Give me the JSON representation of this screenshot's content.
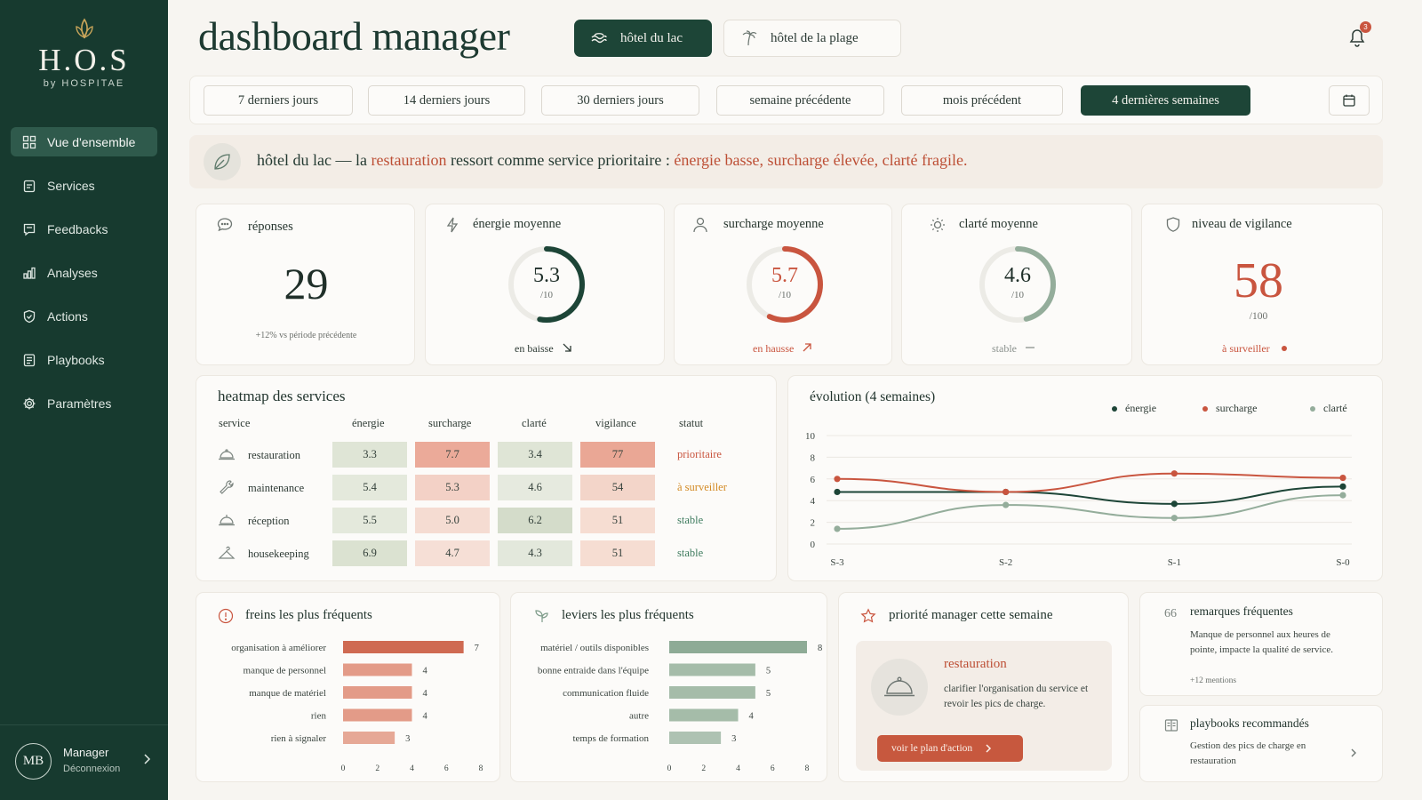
{
  "sidebar": {
    "logo_title": "H.O.S",
    "logo_sub": "by HOSPITAE",
    "items": [
      {
        "label": "Vue d'ensemble",
        "icon": "grid-icon"
      },
      {
        "label": "Services",
        "icon": "clipboard-icon"
      },
      {
        "label": "Feedbacks",
        "icon": "message-icon"
      },
      {
        "label": "Analyses",
        "icon": "bar-chart-icon"
      },
      {
        "label": "Actions",
        "icon": "shield-check-icon"
      },
      {
        "label": "Playbooks",
        "icon": "book-icon"
      },
      {
        "label": "Paramètres",
        "icon": "gear-icon"
      }
    ],
    "profile": {
      "initials": "MB",
      "name": "Manager",
      "sub": "Déconnexion"
    }
  },
  "header": {
    "title": "dashboard manager",
    "hotels": [
      {
        "label": "hôtel du lac",
        "active": true
      },
      {
        "label": "hôtel de la plage",
        "active": false
      }
    ],
    "notifications": "3"
  },
  "periods": {
    "items": [
      "7 derniers jours",
      "14 derniers jours",
      "30 derniers jours",
      "semaine précédente",
      "mois précédent",
      "4 dernières semaines"
    ],
    "active_index": 5
  },
  "banner": {
    "hotel": "hôtel du lac",
    "dash": " — la ",
    "service": "restauration",
    "middle": " ressort comme service prioritaire : ",
    "highlights": "énergie basse, surcharge élevée, clarté fragile."
  },
  "kpis": {
    "responses": {
      "label": "réponses",
      "value": "29",
      "note": "+12% vs période précédente"
    },
    "energy": {
      "label": "énergie moyenne",
      "value": "5.3",
      "den": "/10",
      "trend": "en baisse",
      "fraction": 0.53
    },
    "overload": {
      "label": "surcharge moyenne",
      "value": "5.7",
      "den": "/10",
      "trend": "en hausse",
      "fraction": 0.57
    },
    "clarity": {
      "label": "clarté moyenne",
      "value": "4.6",
      "den": "/10",
      "trend": "stable",
      "fraction": 0.46
    },
    "vigilance": {
      "label": "niveau de vigilance",
      "value": "58",
      "den": "/100",
      "trend": "à surveiller"
    }
  },
  "heatmap": {
    "title": "heatmap des services",
    "headers": [
      "service",
      "énergie",
      "surcharge",
      "clarté",
      "vigilance",
      "statut"
    ],
    "rows": [
      {
        "service": "restauration",
        "energie": "3.3",
        "surcharge": "7.7",
        "clarte": "3.4",
        "vigilance": "77",
        "statut": "prioritaire"
      },
      {
        "service": "maintenance",
        "energie": "5.4",
        "surcharge": "5.3",
        "clarte": "4.6",
        "vigilance": "54",
        "statut": "à surveiller"
      },
      {
        "service": "réception",
        "energie": "5.5",
        "surcharge": "5.0",
        "clarte": "6.2",
        "vigilance": "51",
        "statut": "stable"
      },
      {
        "service": "housekeeping",
        "energie": "6.9",
        "surcharge": "4.7",
        "clarte": "4.3",
        "vigilance": "51",
        "statut": "stable"
      }
    ],
    "colors": {
      "prioritaire": "#c9553f",
      "à surveiller": "#d38a24",
      "stable": "#3f7c5f"
    }
  },
  "evolution": {
    "title": "évolution (4 semaines)",
    "legend": [
      "énergie",
      "surcharge",
      "clarté"
    ]
  },
  "chart_data": [
    {
      "type": "line",
      "title": "évolution (4 semaines)",
      "x": [
        "S-3",
        "S-2",
        "S-1",
        "S-0"
      ],
      "ylim": [
        0,
        10
      ],
      "yticks": [
        "0",
        "2",
        "4",
        "6",
        "8",
        "10"
      ],
      "grid": true,
      "legend_position": "top-right",
      "series": [
        {
          "name": "énergie",
          "color": "#1d4537",
          "values": [
            4.8,
            4.8,
            3.7,
            5.3
          ]
        },
        {
          "name": "surcharge",
          "color": "#c9553f",
          "values": [
            6.0,
            4.8,
            6.5,
            6.1
          ]
        },
        {
          "name": "clarté",
          "color": "#94ad9b",
          "values": [
            1.4,
            3.6,
            2.4,
            4.5
          ]
        }
      ]
    },
    {
      "type": "bar",
      "title": "freins les plus fréquents",
      "categories": [
        "organisation à améliorer",
        "manque de personnel",
        "manque de matériel",
        "rien",
        "rien à signaler"
      ],
      "values": [
        7,
        4,
        4,
        4,
        3
      ],
      "xlim": [
        0,
        8
      ],
      "xticks": [
        "0",
        "2",
        "4",
        "6",
        "8"
      ]
    },
    {
      "type": "bar",
      "title": "leviers les plus fréquents",
      "categories": [
        "matériel / outils disponibles",
        "bonne entraide dans l'équipe",
        "communication fluide",
        "autre",
        "temps de formation"
      ],
      "values": [
        8,
        5,
        5,
        4,
        3
      ],
      "xlim": [
        0,
        8
      ],
      "xticks": [
        "0",
        "2",
        "4",
        "6",
        "8"
      ]
    }
  ],
  "priority": {
    "title": "priorité manager cette semaine",
    "service": "restauration",
    "desc": "clarifier l'organisation du service et revoir les pics de charge.",
    "button": "voir le plan d'action"
  },
  "remarks": {
    "title": "remarques fréquentes",
    "text": "Manque de personnel aux heures de pointe, impacte la qualité de service.",
    "mentions": "+12 mentions"
  },
  "playbooks": {
    "title": "playbooks recommandés",
    "text": "Gestion des pics de charge en restauration"
  }
}
